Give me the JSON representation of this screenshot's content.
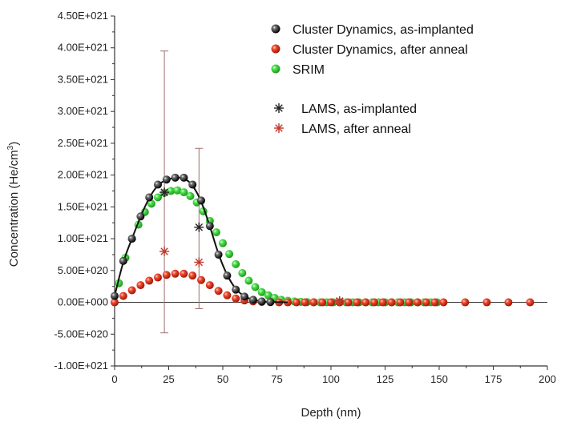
{
  "chart_data": {
    "type": "scatter",
    "xlabel": "Depth (nm)",
    "ylabel_base": "Concentration (He/cm",
    "ylabel_sup": "3",
    "ylabel_end": ")",
    "xlim": [
      0,
      200
    ],
    "ylim": [
      -1e+21,
      4.5e+21
    ],
    "x_ticks": [
      0,
      25,
      50,
      75,
      100,
      125,
      150,
      175,
      200
    ],
    "x_tick_labels": [
      "0",
      "25",
      "50",
      "75",
      "100",
      "125",
      "150",
      "175",
      "200"
    ],
    "y_ticks": [
      -1e+21,
      -5e+20,
      0,
      5e+20,
      1e+21,
      1.5e+21,
      2e+21,
      2.5e+21,
      3e+21,
      3.5e+21,
      4e+21,
      4.5e+21
    ],
    "y_tick_labels": [
      "-1.00E+021",
      "-5.00E+020",
      "0.00E+000",
      "5.00E+020",
      "1.00E+021",
      "1.50E+021",
      "2.00E+021",
      "2.50E+021",
      "3.00E+021",
      "3.50E+021",
      "4.00E+021",
      "4.50E+021"
    ],
    "grid": false,
    "legend_position": "top-right",
    "series": [
      {
        "name": "Cluster Dynamics, as-implanted",
        "legend_label": "Cluster Dynamics, as-implanted",
        "marker": "sphere",
        "color": "#111111",
        "line": true,
        "x": [
          0,
          4,
          8,
          12,
          16,
          20,
          24,
          28,
          32,
          36,
          40,
          44,
          48,
          52,
          56,
          60,
          64,
          68,
          72
        ],
        "y": [
          1e+20,
          6.5e+20,
          1e+21,
          1.35e+21,
          1.65e+21,
          1.85e+21,
          1.93e+21,
          1.96e+21,
          1.96e+21,
          1.85e+21,
          1.6e+21,
          1.2e+21,
          7.5e+20,
          4.2e+20,
          2e+20,
          9e+19,
          4e+19,
          1.5e+19,
          5e+18
        ]
      },
      {
        "name": "Cluster Dynamics, after anneal",
        "legend_label": "Cluster Dynamics, after anneal",
        "marker": "sphere",
        "color": "#e0341c",
        "line": false,
        "x": [
          0,
          4,
          8,
          12,
          16,
          20,
          24,
          28,
          32,
          36,
          40,
          44,
          48,
          52,
          56,
          60,
          64,
          68,
          72,
          76,
          80,
          84,
          88,
          92,
          96,
          100,
          104,
          108,
          112,
          116,
          120,
          124,
          128,
          132,
          136,
          140,
          144,
          148,
          152,
          162,
          172,
          182,
          192
        ],
        "y": [
          0.0,
          1e+20,
          1.9e+20,
          2.7e+20,
          3.4e+20,
          3.9e+20,
          4.3e+20,
          4.5e+20,
          4.5e+20,
          4.2e+20,
          3.5e+20,
          2.7e+20,
          1.8e+20,
          1.1e+20,
          6e+19,
          3e+19,
          1.5e+19,
          7e+18,
          3e+18,
          0.0,
          0.0,
          0.0,
          0.0,
          0.0,
          0.0,
          0.0,
          0.0,
          0.0,
          0.0,
          0.0,
          0.0,
          0.0,
          0.0,
          0.0,
          0.0,
          0.0,
          0.0,
          0.0,
          0.0,
          0.0,
          0.0,
          0.0,
          0.0
        ]
      },
      {
        "name": "SRIM",
        "legend_label": "SRIM",
        "marker": "sphere",
        "color": "#2fd12f",
        "line": false,
        "x": [
          2,
          5,
          8,
          11,
          14,
          17,
          20,
          23,
          26,
          29,
          32,
          35,
          38,
          41,
          44,
          47,
          50,
          53,
          56,
          59,
          62,
          65,
          68,
          71,
          74,
          77,
          80,
          83,
          86,
          89,
          92,
          95,
          98,
          101,
          104,
          107,
          110,
          113,
          116,
          119,
          122,
          125,
          128,
          131,
          134,
          137,
          140,
          143,
          146,
          149
        ],
        "y": [
          3e+20,
          7e+20,
          1e+21,
          1.22e+21,
          1.42e+21,
          1.55e+21,
          1.65e+21,
          1.72e+21,
          1.75e+21,
          1.76e+21,
          1.73e+21,
          1.67e+21,
          1.57e+21,
          1.43e+21,
          1.28e+21,
          1.1e+21,
          9.3e+20,
          7.6e+20,
          6e+20,
          4.6e+20,
          3.4e+20,
          2.4e+20,
          1.6e+20,
          1.1e+20,
          7e+19,
          4e+19,
          2.5e+19,
          1.5e+19,
          8e+18,
          4e+18,
          2e+18,
          1e+18,
          0.0,
          0.0,
          0.0,
          0.0,
          0.0,
          0.0,
          0.0,
          0.0,
          0.0,
          0.0,
          0.0,
          0.0,
          0.0,
          0.0,
          0.0,
          0.0,
          0.0,
          0.0
        ]
      },
      {
        "name": "LAMS, as-implanted",
        "legend_label": "LAMS, as-implanted",
        "marker": "asterisk",
        "color": "#222222",
        "line": false,
        "x": [
          23,
          39,
          104
        ],
        "y": [
          1.73e+21,
          1.18e+21,
          2e+19
        ],
        "yerr_low": [
          -4.8e+20,
          -1e+20,
          0.0
        ],
        "yerr_high": [
          3.95e+21,
          2.42e+21,
          5e+19
        ]
      },
      {
        "name": "LAMS, after anneal",
        "legend_label": "LAMS, after anneal",
        "marker": "asterisk",
        "color": "#c0392b",
        "line": false,
        "x": [
          23,
          39,
          104
        ],
        "y": [
          8e+20,
          6.3e+20,
          2e+19
        ]
      }
    ]
  }
}
